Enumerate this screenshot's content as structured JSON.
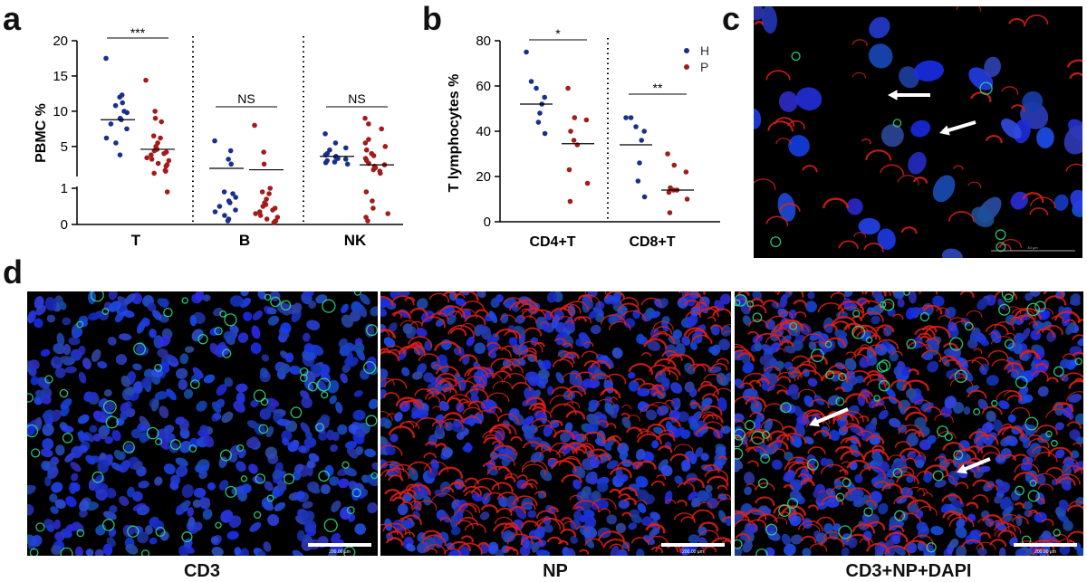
{
  "panels": {
    "a": {
      "letter": "a"
    },
    "b": {
      "letter": "b"
    },
    "c": {
      "letter": "c"
    },
    "d": {
      "letter": "d"
    }
  },
  "colors": {
    "healthy": "#1a2f8c",
    "patient": "#a31b1b",
    "dapi": "#1030d8",
    "cd3": "#2fe08a",
    "np": "#e0201a"
  },
  "chart_data": [
    {
      "panel": "a",
      "type": "scatter",
      "ylabel": "PBMC %",
      "categories": [
        "T",
        "B",
        "NK"
      ],
      "y_axis": "broken",
      "y_lower_range": [
        0,
        1
      ],
      "y_upper_range": [
        1,
        20
      ],
      "y_ticks": [
        "0",
        "1",
        "5",
        "10",
        "15",
        "20"
      ],
      "series": [
        {
          "group": "H",
          "points": {
            "T": [
              17.5,
              12.3,
              12.0,
              11.2,
              10.8,
              10.0,
              9.8,
              9.0,
              8.8,
              8.2,
              7.5,
              6.2,
              5.5,
              3.8
            ],
            "B": [
              5.8,
              4.4,
              3.2,
              2.5,
              0.9,
              0.85,
              0.75,
              0.65,
              0.6,
              0.5,
              0.4,
              0.35,
              0.25,
              0.15,
              0.1
            ],
            "NK": [
              6.8,
              5.5,
              4.8,
              4.5,
              4.0,
              3.8,
              3.6,
              3.5,
              3.3,
              3.2,
              3.0,
              2.8,
              2.7,
              2.5
            ]
          },
          "medians": {
            "T": 8.8,
            "B": 1.9,
            "NK": 3.6
          }
        },
        {
          "group": "P",
          "points": {
            "T": [
              14.4,
              10.0,
              9.0,
              8.5,
              6.5,
              6.2,
              5.5,
              5.0,
              4.6,
              4.4,
              4.2,
              4.0,
              3.8,
              3.4,
              3.2,
              3.0,
              2.6,
              2.4,
              2.2,
              1.6,
              1.5,
              1.2,
              0.9
            ],
            "B": [
              8.0,
              4.2,
              2.5,
              1.0,
              0.9,
              0.85,
              0.7,
              0.6,
              0.55,
              0.5,
              0.45,
              0.4,
              0.35,
              0.3,
              0.25,
              0.2,
              0.15,
              0.1,
              0.08,
              0.05
            ],
            "NK": [
              9.0,
              8.2,
              7.5,
              6.0,
              5.5,
              5.0,
              4.5,
              4.0,
              3.7,
              3.3,
              3.0,
              2.6,
              2.4,
              2.2,
              2.0,
              1.7,
              1.5,
              1.2,
              0.9,
              0.65,
              0.45,
              0.3,
              0.2,
              0.1
            ]
          },
          "medians": {
            "T": 4.6,
            "B": 1.7,
            "NK": 2.4
          }
        }
      ],
      "annotations": [
        {
          "category": "T",
          "text": "***"
        },
        {
          "category": "B",
          "text": "NS"
        },
        {
          "category": "NK",
          "text": "NS"
        }
      ]
    },
    {
      "panel": "b",
      "type": "scatter",
      "ylabel": "T lymphocytes %",
      "categories": [
        "CD4+T",
        "CD8+T"
      ],
      "ylim": [
        0,
        80
      ],
      "y_ticks": [
        0,
        20,
        40,
        60,
        80
      ],
      "legend": [
        "H",
        "P"
      ],
      "legend_position": "top-right",
      "series": [
        {
          "group": "H",
          "points": {
            "CD4+T": [
              75,
              62,
              59,
              55,
              52,
              48,
              44,
              39
            ],
            "CD8+T": [
              46,
              46,
              42,
              40,
              36,
              26,
              18,
              11
            ]
          },
          "medians": {
            "CD4+T": 52,
            "CD8+T": 34
          }
        },
        {
          "group": "P",
          "points": {
            "CD4+T": [
              59,
              46,
              45,
              40,
              36,
              34,
              23,
              17,
              9
            ],
            "CD8+T": [
              30,
              25,
              22,
              15,
              14,
              14,
              13,
              10,
              4
            ]
          },
          "medians": {
            "CD4+T": 34.5,
            "CD8+T": 14
          }
        }
      ],
      "annotations": [
        {
          "category": "CD4+T",
          "text": "*"
        },
        {
          "category": "CD8+T",
          "text": "**"
        }
      ]
    }
  ],
  "images": {
    "c": {
      "scale_label": "40 µm"
    },
    "d": [
      {
        "caption": "CD3",
        "scale_label": "200.00 µm"
      },
      {
        "caption": "NP",
        "scale_label": "200.00 µm"
      },
      {
        "caption": "CD3+NP+DAPI",
        "scale_label": "200.00 µm"
      }
    ]
  }
}
